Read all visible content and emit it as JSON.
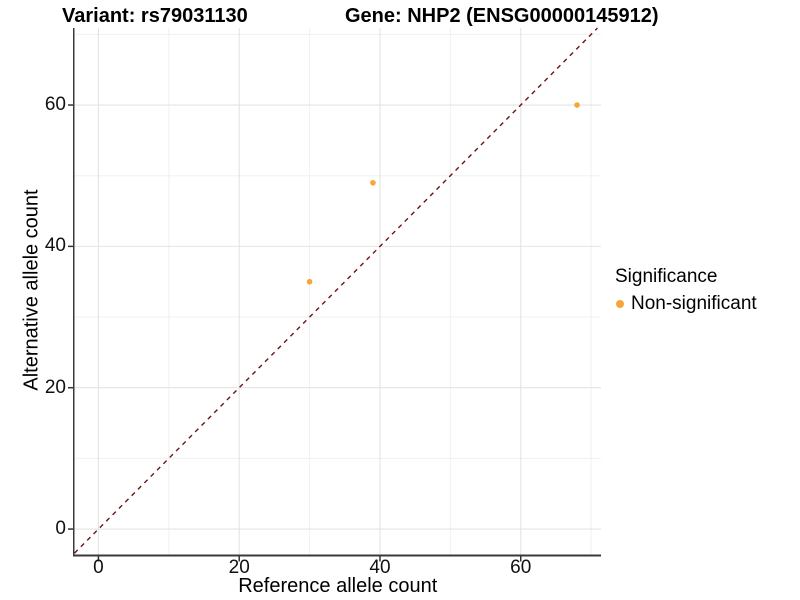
{
  "chart_data": {
    "type": "scatter",
    "title_left": "Variant: rs79031130",
    "title_right": "Gene: NHP2 (ENSG00000145912)",
    "xlabel": "Reference allele count",
    "ylabel": "Alternative allele count",
    "xlim": [
      -3.4,
      71.4
    ],
    "ylim": [
      -3.6,
      70.9
    ],
    "x_ticks": [
      0,
      20,
      40,
      60
    ],
    "y_ticks": [
      0,
      20,
      40,
      60
    ],
    "x_minor_ticks": [
      10,
      30,
      50,
      70
    ],
    "y_minor_ticks": [
      10,
      30,
      50,
      70
    ],
    "grid": true,
    "series": [
      {
        "name": "Non-significant",
        "color": "#F6A636",
        "points": [
          {
            "x": 30,
            "y": 35
          },
          {
            "x": 39,
            "y": 49
          },
          {
            "x": 68,
            "y": 60
          }
        ]
      }
    ],
    "identity_line": {
      "style": "dashed",
      "color": "#701212",
      "equation": "y = x"
    },
    "legend": {
      "title": "Significance",
      "position": "right",
      "entries": [
        {
          "label": "Non-significant",
          "color": "#F6A636"
        }
      ]
    }
  },
  "colors": {
    "point": "#F6A636",
    "dashed_line": "#701212",
    "grid_major": "#E4E4E4",
    "grid_minor": "#F0F0F0",
    "axis_line": "#3a3a3a",
    "tick_mark": "#333333",
    "background": "#ffffff"
  }
}
